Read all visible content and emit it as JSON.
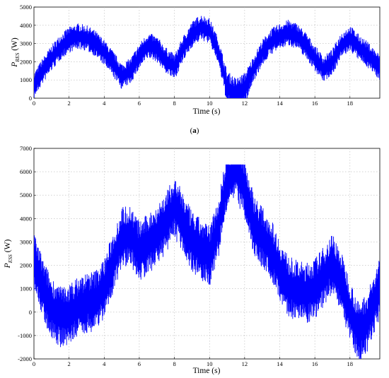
{
  "chart_data": [
    {
      "type": "line",
      "panel_label": "(a)",
      "ylabel_main": "P",
      "ylabel_sub": "RES",
      "ylabel_unit": "(W)",
      "xlabel": "Time (s)",
      "xlim": [
        0,
        19.7
      ],
      "ylim": [
        0,
        5000
      ],
      "xticks": [
        0,
        2,
        4,
        6,
        8,
        10,
        12,
        14,
        16,
        18
      ],
      "yticks": [
        0,
        1000,
        2000,
        3000,
        4000,
        5000
      ],
      "grid": true,
      "color": "#0000ff",
      "series": [
        {
          "x": [
            0,
            0.5,
            1,
            1.5,
            2,
            2.5,
            3,
            3.5,
            4,
            4.5,
            5,
            5.5,
            6,
            6.5,
            7,
            7.5,
            8,
            8.5,
            9,
            9.5,
            10,
            10.5,
            11,
            11.5,
            12,
            12.5,
            13,
            13.5,
            14,
            14.5,
            15,
            15.5,
            16,
            16.5,
            17,
            17.5,
            18,
            18.5,
            19,
            19.7
          ],
          "y": [
            700,
            1500,
            2200,
            2800,
            3200,
            3400,
            3300,
            3000,
            2500,
            1900,
            1200,
            1500,
            2300,
            2900,
            2700,
            2100,
            1700,
            2700,
            3500,
            3900,
            3700,
            2600,
            600,
            200,
            500,
            1600,
            2500,
            3100,
            3400,
            3600,
            3400,
            2900,
            2200,
            1600,
            2000,
            2900,
            3300,
            2800,
            2400,
            1700
          ],
          "amplitude": [
            [
              0,
              700
            ],
            [
              10.5,
              700
            ],
            [
              11,
              900
            ],
            [
              12,
              900
            ],
            [
              12.5,
              700
            ],
            [
              19.7,
              700
            ]
          ]
        }
      ]
    },
    {
      "type": "line",
      "ylabel_main": "P",
      "ylabel_sub": "ESS",
      "ylabel_unit": "(W)",
      "xlabel": "Time (s)",
      "xlim": [
        0,
        19.7
      ],
      "ylim": [
        -2000,
        7000
      ],
      "xticks": [
        0,
        2,
        4,
        6,
        8,
        10,
        12,
        14,
        16,
        18
      ],
      "yticks": [
        -2000,
        -1000,
        0,
        1000,
        2000,
        3000,
        4000,
        5000,
        6000,
        7000
      ],
      "grid": true,
      "color": "#0000ff",
      "clip_max": 6300,
      "series": [
        {
          "x": [
            0,
            0.5,
            1,
            1.5,
            2,
            2.5,
            3,
            3.5,
            4,
            4.5,
            5,
            5.5,
            6,
            6.5,
            7,
            7.5,
            8,
            8.5,
            9,
            9.5,
            10,
            10.5,
            11,
            11.5,
            12,
            12.5,
            13,
            13.5,
            14,
            14.5,
            15,
            15.5,
            16,
            16.5,
            17,
            17.5,
            18,
            18.5,
            19,
            19.7
          ],
          "y": [
            2200,
            1000,
            200,
            -200,
            -100,
            200,
            400,
            500,
            1000,
            2100,
            3200,
            3300,
            2600,
            2900,
            3300,
            3800,
            4500,
            3800,
            3000,
            2700,
            2400,
            3600,
            5600,
            6100,
            5300,
            3800,
            3200,
            2700,
            1800,
            1100,
            900,
            800,
            1000,
            1500,
            2100,
            1300,
            100,
            -900,
            -400,
            1000
          ],
          "amplitude": [
            [
              0,
              1300
            ],
            [
              19.7,
              1300
            ]
          ]
        }
      ]
    }
  ]
}
